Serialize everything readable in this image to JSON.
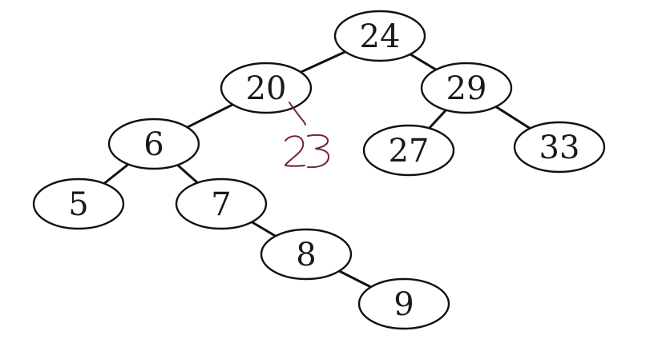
{
  "tree": {
    "nodes": [
      {
        "id": "n24",
        "label": "24"
      },
      {
        "id": "n20",
        "label": "20"
      },
      {
        "id": "n29",
        "label": "29"
      },
      {
        "id": "n6",
        "label": "6"
      },
      {
        "id": "n27",
        "label": "27"
      },
      {
        "id": "n33",
        "label": "33"
      },
      {
        "id": "n5",
        "label": "5"
      },
      {
        "id": "n7",
        "label": "7"
      },
      {
        "id": "n8",
        "label": "8"
      },
      {
        "id": "n9",
        "label": "9"
      }
    ],
    "edges": [
      [
        "n24",
        "n20"
      ],
      [
        "n24",
        "n29"
      ],
      [
        "n20",
        "n6"
      ],
      [
        "n29",
        "n27"
      ],
      [
        "n29",
        "n33"
      ],
      [
        "n6",
        "n5"
      ],
      [
        "n6",
        "n7"
      ],
      [
        "n7",
        "n8"
      ],
      [
        "n8",
        "n9"
      ]
    ]
  },
  "annotation": {
    "text": "23",
    "attached_to": "n20",
    "style": "handwritten",
    "color": "#7a1f3d"
  },
  "colors": {
    "stroke": "#111111",
    "label": "#1a1a1a",
    "background": "#ffffff"
  }
}
